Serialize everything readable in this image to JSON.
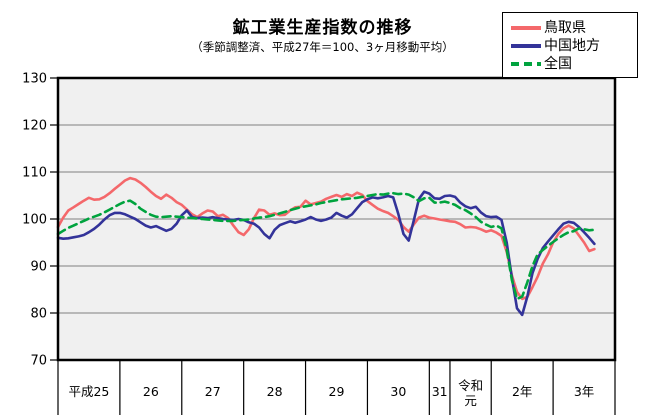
{
  "chart_data": {
    "type": "line",
    "title": "鉱工業生産指数の推移",
    "subtitle": "（季節調整済、平成27年＝100、3ヶ月移動平均）",
    "x_start": "平成25年1月",
    "x_interval": "month",
    "x_categories": [
      {
        "label": "平成25",
        "months": 12
      },
      {
        "label": "26",
        "months": 12
      },
      {
        "label": "27",
        "months": 12
      },
      {
        "label": "28",
        "months": 12
      },
      {
        "label": "29",
        "months": 12
      },
      {
        "label": "30",
        "months": 12
      },
      {
        "label": "31",
        "months": 4
      },
      {
        "label": "令和元",
        "months": 8
      },
      {
        "label": "2年",
        "months": 12
      },
      {
        "label": "3年",
        "months": 12
      }
    ],
    "ylim": [
      70,
      130
    ],
    "yticks": [
      70,
      80,
      90,
      100,
      110,
      120,
      130
    ],
    "grid": true,
    "legend_position": "top-right",
    "plot_bg_color": "#f0f0f0",
    "grid_color": "#808080",
    "series": [
      {
        "name": "鳥取県",
        "color": "#f4686b",
        "dash": false,
        "values": [
          98.3,
          100.3,
          101.8,
          102.5,
          103.2,
          103.9,
          104.5,
          104.1,
          104.2,
          104.7,
          105.5,
          106.4,
          107.3,
          108.2,
          108.7,
          108.4,
          107.7,
          106.8,
          105.8,
          104.9,
          104.3,
          105.2,
          104.5,
          103.6,
          103.0,
          102.0,
          101.0,
          100.4,
          101.2,
          101.8,
          101.6,
          100.6,
          100.9,
          100.2,
          98.6,
          97.2,
          96.6,
          97.8,
          100.2,
          102.0,
          101.8,
          100.9,
          101.2,
          100.8,
          100.9,
          101.8,
          102.5,
          102.6,
          103.9,
          103.1,
          103.4,
          103.7,
          104.3,
          104.7,
          105.1,
          104.7,
          105.3,
          104.9,
          105.6,
          105.1,
          103.8,
          103.0,
          102.2,
          101.7,
          101.3,
          100.6,
          99.8,
          98.3,
          97.3,
          98.9,
          100.3,
          100.7,
          100.3,
          100.1,
          99.9,
          99.7,
          99.5,
          99.4,
          98.9,
          98.2,
          98.3,
          98.2,
          97.8,
          97.3,
          97.6,
          97.1,
          96.4,
          93.0,
          88.0,
          84.5,
          83.0,
          83.4,
          85.5,
          87.7,
          90.5,
          92.5,
          95.0,
          96.8,
          98.0,
          98.6,
          98.0,
          96.5,
          95.0,
          93.2,
          93.6
        ]
      },
      {
        "name": "中国地方",
        "color": "#333399",
        "dash": false,
        "values": [
          96.0,
          95.8,
          95.9,
          96.1,
          96.3,
          96.6,
          97.2,
          97.9,
          98.8,
          99.9,
          100.8,
          101.3,
          101.3,
          101.0,
          100.5,
          100.0,
          99.3,
          98.6,
          98.2,
          98.5,
          98.0,
          97.5,
          97.9,
          99.0,
          100.8,
          101.8,
          100.4,
          100.2,
          100.3,
          100.2,
          100.4,
          100.2,
          100.0,
          99.9,
          99.8,
          100.0,
          99.8,
          99.3,
          99.0,
          98.2,
          96.8,
          95.9,
          97.7,
          98.7,
          99.1,
          99.5,
          99.2,
          99.5,
          99.9,
          100.4,
          99.9,
          99.6,
          99.9,
          100.3,
          101.3,
          100.7,
          100.3,
          101.0,
          102.3,
          103.6,
          104.2,
          104.6,
          104.4,
          104.6,
          104.9,
          104.6,
          101.0,
          96.8,
          95.4,
          99.8,
          104.3,
          105.8,
          105.4,
          104.4,
          104.3,
          104.9,
          105.0,
          104.7,
          103.5,
          102.7,
          102.3,
          102.6,
          101.4,
          100.6,
          100.4,
          100.5,
          99.8,
          95.0,
          87.5,
          81.0,
          79.6,
          83.5,
          88.5,
          91.5,
          93.8,
          95.2,
          96.5,
          97.8,
          99.0,
          99.4,
          99.2,
          98.3,
          97.2,
          96.0,
          94.7
        ]
      },
      {
        "name": "全国",
        "color": "#00a33e",
        "dash": true,
        "values": [
          96.8,
          97.5,
          98.1,
          98.6,
          99.1,
          99.6,
          100.1,
          100.5,
          100.9,
          101.4,
          102.0,
          102.6,
          103.2,
          103.7,
          103.9,
          103.2,
          102.2,
          101.5,
          100.9,
          100.5,
          100.4,
          100.5,
          100.6,
          100.5,
          100.4,
          100.3,
          100.2,
          100.1,
          100.0,
          99.9,
          99.8,
          99.7,
          99.6,
          99.6,
          99.6,
          99.7,
          99.8,
          99.9,
          100.1,
          100.3,
          100.4,
          100.6,
          100.9,
          101.2,
          101.5,
          101.9,
          102.2,
          102.5,
          102.7,
          102.9,
          103.1,
          103.4,
          103.6,
          103.8,
          104.0,
          104.2,
          104.3,
          104.4,
          104.5,
          104.7,
          104.9,
          105.1,
          105.3,
          105.2,
          105.4,
          105.5,
          105.3,
          105.4,
          105.2,
          104.6,
          103.8,
          104.4,
          104.5,
          103.5,
          103.5,
          103.7,
          103.4,
          103.0,
          102.3,
          101.9,
          101.2,
          100.4,
          99.4,
          98.8,
          98.3,
          98.6,
          98.0,
          93.5,
          87.0,
          83.0,
          83.5,
          86.5,
          90.0,
          92.5,
          93.4,
          94.3,
          95.1,
          95.9,
          96.6,
          97.2,
          97.4,
          98.0,
          97.8,
          97.6,
          97.7
        ]
      }
    ]
  }
}
